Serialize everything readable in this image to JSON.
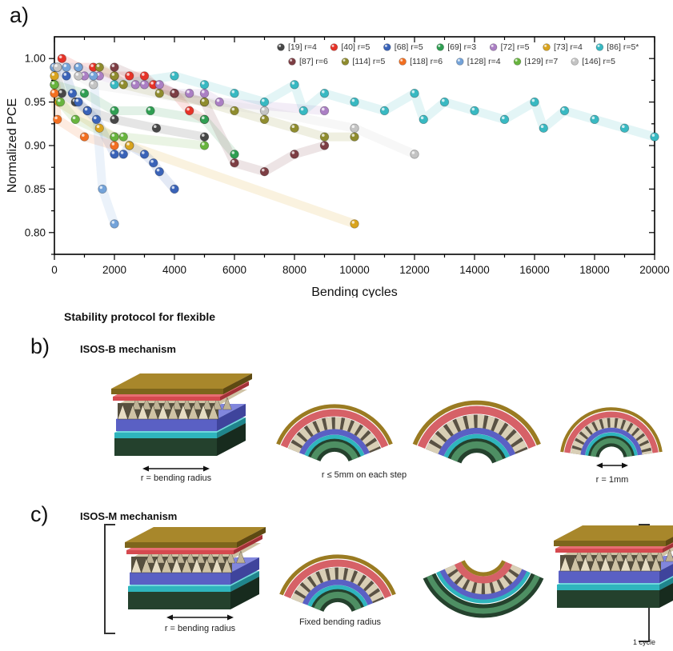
{
  "panel_a": {
    "label": "a)"
  },
  "chart_data": {
    "type": "scatter",
    "title": "",
    "xlabel": "Bending cycles",
    "ylabel": "Normalized PCE",
    "xlim": [
      0,
      20000
    ],
    "ylim": [
      0.775,
      1.025
    ],
    "x_major_ticks": [
      0,
      2000,
      4000,
      6000,
      8000,
      10000,
      12000,
      14000,
      16000,
      18000,
      20000
    ],
    "x_minor_step": 1000,
    "y_major_ticks": [
      0.8,
      0.85,
      0.9,
      0.95,
      1.0
    ],
    "y_minor_step": 0.025,
    "grid": false,
    "legend_position": "top-right-inside",
    "legend_rows": [
      7,
      6
    ],
    "series": [
      {
        "label": "[19] r=4",
        "color": "#474747",
        "points": [
          [
            0,
            0.99
          ],
          [
            250,
            0.96
          ],
          [
            700,
            0.95
          ],
          [
            1100,
            0.94
          ],
          [
            2000,
            0.93
          ],
          [
            3400,
            0.92
          ],
          [
            5000,
            0.91
          ]
        ]
      },
      {
        "label": "[40] r=5",
        "color": "#e63328",
        "points": [
          [
            250,
            1.0
          ],
          [
            800,
            0.99
          ],
          [
            1300,
            0.99
          ],
          [
            2000,
            0.98
          ],
          [
            2500,
            0.98
          ],
          [
            3000,
            0.98
          ],
          [
            3300,
            0.97
          ],
          [
            4000,
            0.96
          ],
          [
            4500,
            0.94
          ],
          [
            5000,
            0.93
          ]
        ]
      },
      {
        "label": "[68] r=5",
        "color": "#3a63b8",
        "points": [
          [
            100,
            0.99
          ],
          [
            400,
            0.98
          ],
          [
            600,
            0.96
          ],
          [
            800,
            0.95
          ],
          [
            1100,
            0.94
          ],
          [
            1400,
            0.93
          ],
          [
            2000,
            0.89
          ],
          [
            2300,
            0.89
          ],
          [
            2500,
            0.9
          ],
          [
            3000,
            0.89
          ],
          [
            3300,
            0.88
          ],
          [
            3500,
            0.87
          ],
          [
            4000,
            0.85
          ]
        ]
      },
      {
        "label": "[69] r=3",
        "color": "#2f9e52",
        "points": [
          [
            0,
            0.97
          ],
          [
            1000,
            0.96
          ],
          [
            2000,
            0.94
          ],
          [
            3200,
            0.94
          ],
          [
            5000,
            0.93
          ],
          [
            6000,
            0.89
          ]
        ]
      },
      {
        "label": "[72] r=5",
        "color": "#ab7fc4",
        "points": [
          [
            1000,
            0.98
          ],
          [
            1500,
            0.98
          ],
          [
            2700,
            0.97
          ],
          [
            3000,
            0.97
          ],
          [
            3500,
            0.97
          ],
          [
            4000,
            0.96
          ],
          [
            4500,
            0.96
          ],
          [
            5000,
            0.96
          ],
          [
            5500,
            0.95
          ],
          [
            9000,
            0.94
          ]
        ]
      },
      {
        "label": "[73] r=4",
        "color": "#d9a41f",
        "points": [
          [
            0,
            0.98
          ],
          [
            150,
            0.95
          ],
          [
            1500,
            0.92
          ],
          [
            2000,
            0.91
          ],
          [
            2500,
            0.9
          ],
          [
            10000,
            0.81
          ]
        ]
      },
      {
        "label": "[86] r=5*",
        "color": "#38b9c2",
        "points": [
          [
            2000,
            0.97
          ],
          [
            4000,
            0.98
          ],
          [
            5000,
            0.97
          ],
          [
            6000,
            0.96
          ],
          [
            7000,
            0.95
          ],
          [
            8000,
            0.97
          ],
          [
            8300,
            0.94
          ],
          [
            9000,
            0.96
          ],
          [
            10000,
            0.95
          ],
          [
            11000,
            0.94
          ],
          [
            12000,
            0.96
          ],
          [
            12300,
            0.93
          ],
          [
            13000,
            0.95
          ],
          [
            14000,
            0.94
          ],
          [
            15000,
            0.93
          ],
          [
            16000,
            0.95
          ],
          [
            16300,
            0.92
          ],
          [
            17000,
            0.94
          ],
          [
            18000,
            0.93
          ],
          [
            19000,
            0.92
          ],
          [
            20000,
            0.91
          ]
        ]
      },
      {
        "label": "[87] r=6",
        "color": "#7d3e44",
        "points": [
          [
            2000,
            0.99
          ],
          [
            4000,
            0.96
          ],
          [
            5000,
            0.95
          ],
          [
            6000,
            0.88
          ],
          [
            7000,
            0.87
          ],
          [
            8000,
            0.89
          ],
          [
            9000,
            0.9
          ]
        ]
      },
      {
        "label": "[114] r=5",
        "color": "#8f8c2e",
        "points": [
          [
            1500,
            0.99
          ],
          [
            2000,
            0.98
          ],
          [
            2300,
            0.97
          ],
          [
            3500,
            0.96
          ],
          [
            5000,
            0.95
          ],
          [
            6000,
            0.94
          ],
          [
            7000,
            0.93
          ],
          [
            8000,
            0.92
          ],
          [
            9000,
            0.91
          ],
          [
            10000,
            0.91
          ]
        ]
      },
      {
        "label": "[118] r=6",
        "color": "#f26f21",
        "points": [
          [
            0,
            0.96
          ],
          [
            100,
            0.93
          ],
          [
            1000,
            0.91
          ],
          [
            2000,
            0.9
          ]
        ]
      },
      {
        "label": "[128] r=4",
        "color": "#74a3d9",
        "points": [
          [
            0,
            0.99
          ],
          [
            400,
            0.99
          ],
          [
            800,
            0.99
          ],
          [
            1300,
            0.98
          ],
          [
            1600,
            0.85
          ],
          [
            2000,
            0.81
          ]
        ]
      },
      {
        "label": "[129] r=7",
        "color": "#68b43e",
        "points": [
          [
            0,
            0.97
          ],
          [
            200,
            0.95
          ],
          [
            700,
            0.93
          ],
          [
            2000,
            0.91
          ],
          [
            2300,
            0.91
          ],
          [
            5000,
            0.9
          ]
        ]
      },
      {
        "label": "[146] r=5",
        "color": "#c4c4c4",
        "points": [
          [
            100,
            0.99
          ],
          [
            800,
            0.98
          ],
          [
            1300,
            0.97
          ],
          [
            7000,
            0.94
          ],
          [
            10000,
            0.92
          ],
          [
            12000,
            0.89
          ]
        ]
      }
    ]
  },
  "section_title": "Stability protocol for flexible",
  "panel_b": {
    "label": "b)",
    "title": "ISOS-B mechanism",
    "captions": [
      "r = bending radius",
      "r ≤ 5mm on each step",
      "r = 1mm"
    ]
  },
  "panel_c": {
    "label": "c)",
    "title": "ISOS-M mechanism",
    "captions": [
      "r = bending radius",
      "Fixed bending radius",
      "1 cycle"
    ]
  },
  "device_palette": {
    "gold_top": "#7d651c",
    "red_layer": "#d5494f",
    "pyramid_texture": "#d9cfb6",
    "blue_layer": "#5a60c4",
    "cyan_layer": "#2fb5bd",
    "green_substrate": "#24412d"
  }
}
